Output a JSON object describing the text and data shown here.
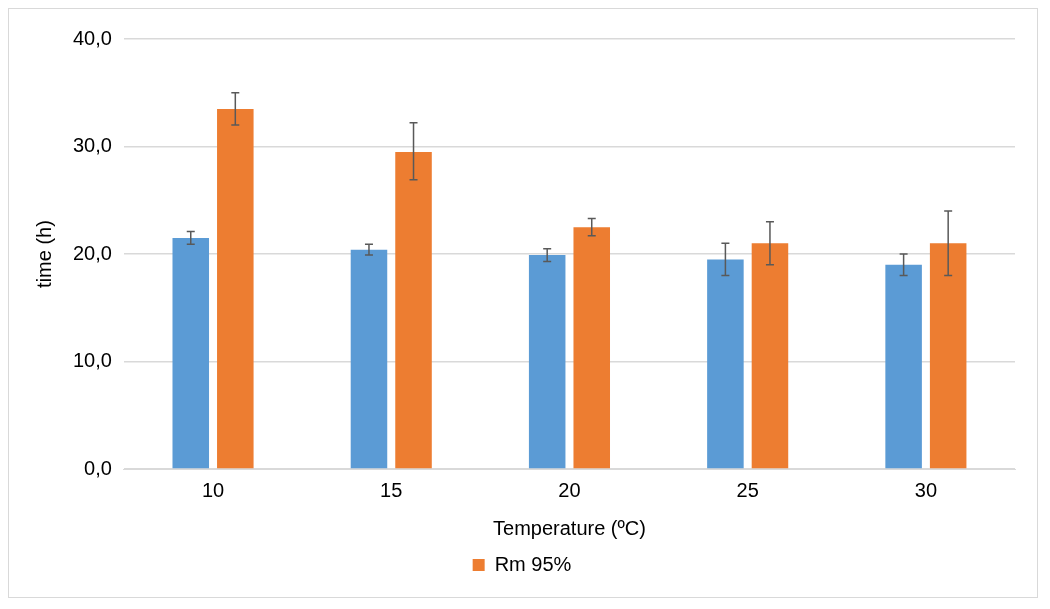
{
  "chart_data": {
    "type": "bar",
    "xlabel": "Temperature (ºC)",
    "ylabel": "time (h)",
    "categories": [
      "10",
      "15",
      "20",
      "25",
      "30"
    ],
    "series": [
      {
        "color": "#5b9bd5",
        "values": [
          21.5,
          20.4,
          19.9,
          19.5,
          19.0
        ],
        "errors": [
          0.6,
          0.5,
          0.6,
          1.5,
          1.0
        ]
      },
      {
        "name": "Rm 95%",
        "color": "#ed7d31",
        "values": [
          33.5,
          29.5,
          22.5,
          21.0,
          21.0
        ],
        "errors": [
          1.5,
          [
            26.9,
            32.2
          ],
          0.8,
          2.0,
          3.0
        ]
      }
    ],
    "ylim": [
      0,
      40
    ],
    "yticks": [
      {
        "value": 0,
        "label": "0,0"
      },
      {
        "value": 10,
        "label": "10,0"
      },
      {
        "value": 20,
        "label": "20,0"
      },
      {
        "value": 30,
        "label": "30,0"
      },
      {
        "value": 40,
        "label": "40,0"
      }
    ],
    "grid": "y",
    "legend": "bottom"
  }
}
